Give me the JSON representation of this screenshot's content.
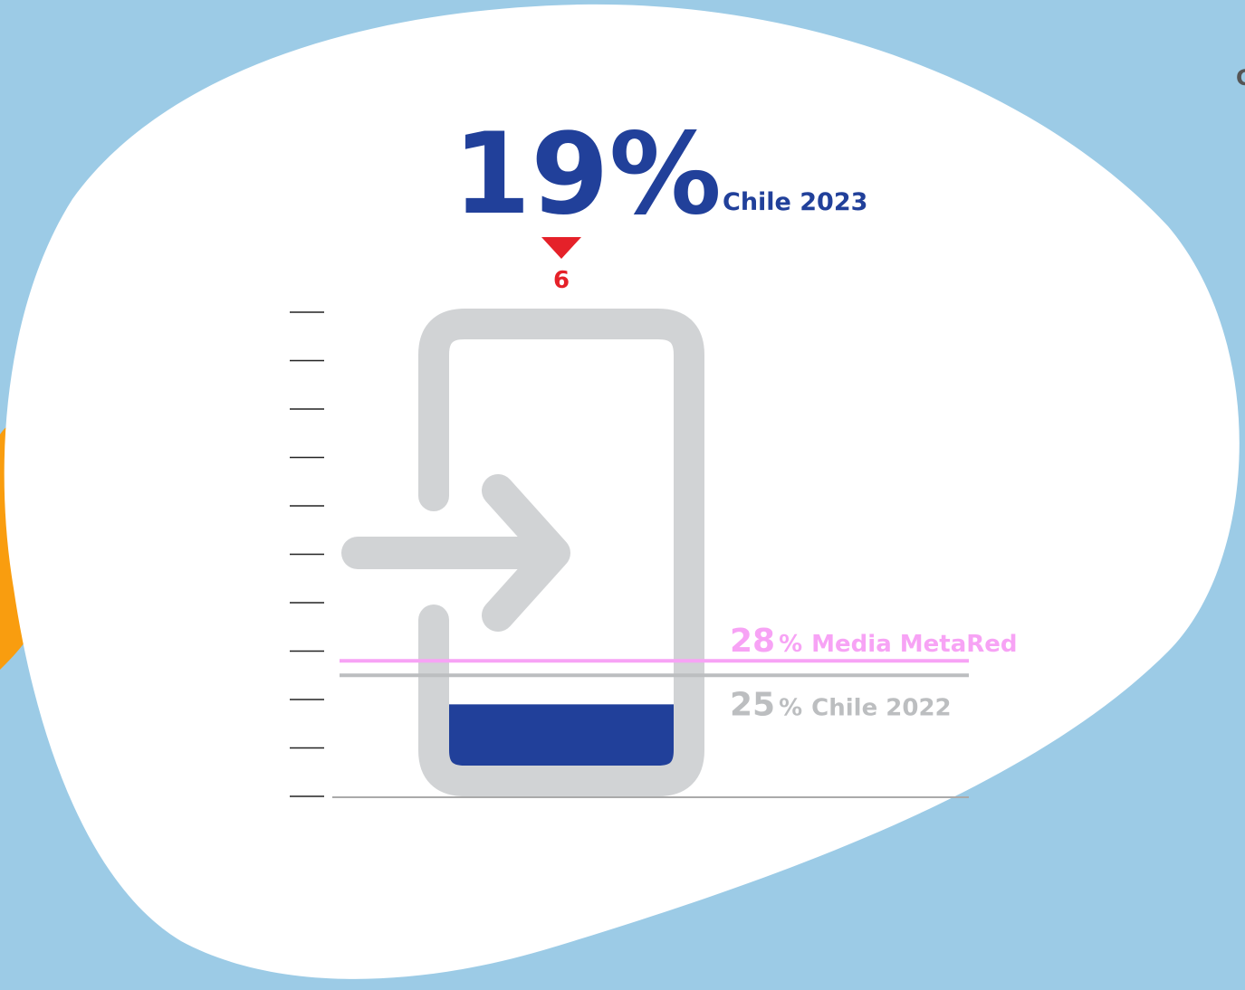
{
  "chart_data": {
    "type": "gauge",
    "value": 19,
    "unit": "%",
    "label": "Chile 2023",
    "color": "#21409a",
    "change": 6,
    "change_direction": "down",
    "change_color": "#e52129",
    "reference_lines": [
      {
        "name": "Media MetaRed",
        "value": 28,
        "color": "#f7a3f5"
      },
      {
        "name": "Chile 2022",
        "value": 25,
        "color": "#bcbec0"
      }
    ],
    "ylim": [
      0,
      100
    ],
    "yticks": [
      0,
      10,
      20,
      30,
      40,
      50,
      60,
      70,
      80,
      90,
      100
    ],
    "edge_text": "C"
  }
}
